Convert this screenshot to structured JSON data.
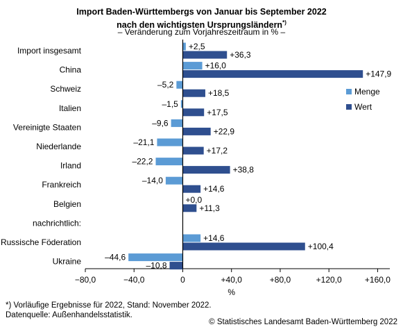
{
  "title_line1": "Import Baden-Württembergs von Januar bis September 2022",
  "title_line2": "nach den wichtigsten Ursprungsländern",
  "title_sup": "*)",
  "subtitle": "– Veränderung zum Vorjahreszeitraum in % –",
  "footnote1": "*) Vorläufige Ergebnisse für 2022, Stand: November 2022.",
  "footnote2": "Datenquelle: Außenhandelsstatistik.",
  "copyright": "© Statistisches Landesamt Baden-Württemberg 2022",
  "colors": {
    "menge": "#5b9bd5",
    "wert": "#2f4f8f"
  },
  "chart_data": {
    "type": "bar",
    "orientation": "horizontal",
    "categories": [
      "Import insgesamt",
      "China",
      "Schweiz",
      "Italien",
      "Vereinigte Staaten",
      "Niederlande",
      "Irland",
      "Frankreich",
      "Belgien",
      "nachrichtlich:",
      "Russische Föderation",
      "Ukraine"
    ],
    "series": [
      {
        "name": "Menge",
        "values": [
          2.5,
          16.0,
          -5.2,
          -1.5,
          -9.6,
          -21.1,
          -22.2,
          -14.0,
          0.0,
          null,
          14.6,
          -44.6
        ],
        "labels": [
          "+2,5",
          "+16,0",
          "–5,2",
          "–1,5",
          "–9,6",
          "–21,1",
          "–22,2",
          "–14,0",
          "+0,0",
          "",
          "+14,6",
          "–44,6"
        ]
      },
      {
        "name": "Wert",
        "values": [
          36.3,
          147.9,
          18.5,
          17.5,
          22.9,
          17.2,
          38.8,
          14.6,
          11.3,
          null,
          100.4,
          -10.8
        ],
        "labels": [
          "+36,3",
          "+147,9",
          "+18,5",
          "+17,5",
          "+22,9",
          "+17,2",
          "+38,8",
          "+14,6",
          "+11,3",
          "",
          "+100,4",
          "–10,8"
        ]
      }
    ],
    "xlim": [
      -80,
      170
    ],
    "xticks": [
      -80,
      -40,
      0,
      40,
      80,
      120,
      160
    ],
    "xtick_labels": [
      "−80,0",
      "−40,0",
      "0",
      "+40,0",
      "+80,0",
      "+120,0",
      "+160,0"
    ],
    "xlabel": "%",
    "legend_position": "right"
  }
}
